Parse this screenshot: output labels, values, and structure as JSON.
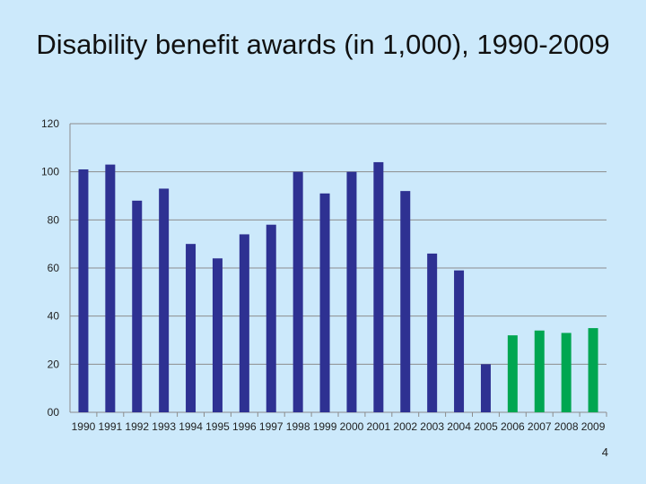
{
  "slide": {
    "page_number": "4"
  },
  "chart_data": {
    "type": "bar",
    "title": "Disability benefit awards (in 1,000), 1990-2009",
    "xlabel": "",
    "ylabel": "",
    "ylim": [
      0,
      120
    ],
    "yticks": [
      0,
      20,
      40,
      60,
      80,
      100,
      120
    ],
    "ytick_labels": [
      "00",
      "20",
      "40",
      "60",
      "80",
      "100",
      "120"
    ],
    "grid": true,
    "categories": [
      "1990",
      "1991",
      "1992",
      "1993",
      "1994",
      "1995",
      "1996",
      "1997",
      "1998",
      "1999",
      "2000",
      "2001",
      "2002",
      "2003",
      "2004",
      "2005",
      "2006",
      "2007",
      "2008",
      "2009"
    ],
    "values": [
      101,
      103,
      88,
      93,
      70,
      64,
      74,
      78,
      100,
      91,
      100,
      104,
      92,
      66,
      59,
      20,
      32,
      34,
      33,
      35
    ],
    "colors": [
      "#2e3192",
      "#2e3192",
      "#2e3192",
      "#2e3192",
      "#2e3192",
      "#2e3192",
      "#2e3192",
      "#2e3192",
      "#2e3192",
      "#2e3192",
      "#2e3192",
      "#2e3192",
      "#2e3192",
      "#2e3192",
      "#2e3192",
      "#2e3192",
      "#00a651",
      "#00a651",
      "#00a651",
      "#00a651"
    ]
  }
}
